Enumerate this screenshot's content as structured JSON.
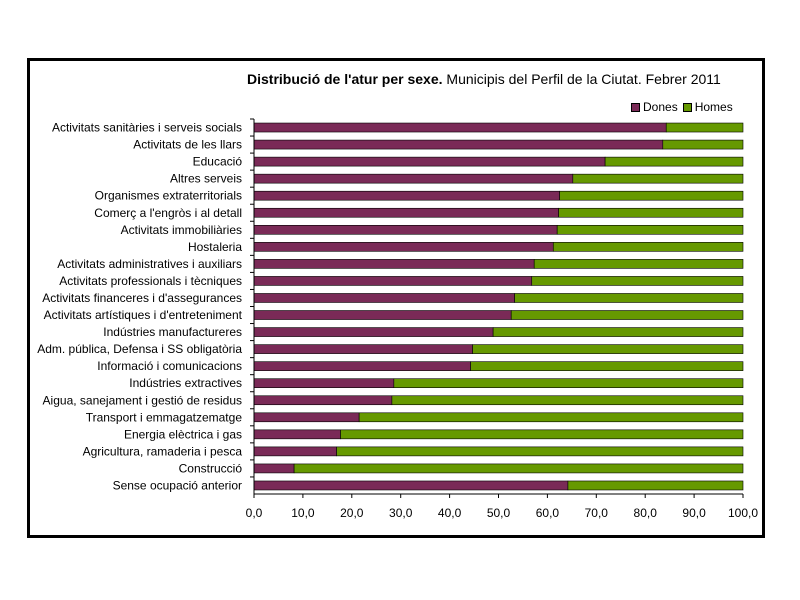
{
  "chart_data": {
    "type": "bar",
    "orientation": "horizontal",
    "stacked": true,
    "title_bold": "Distribució de l'atur per sexe.",
    "title_rest": " Municipis del Perfil de la Ciutat. Febrer 2011",
    "categories": [
      "Activitats sanitàries i serveis socials",
      "Activitats de les llars",
      "Educació",
      "Altres serveis",
      "Organismes extraterritorials",
      "Comerç a l'engròs i al detall",
      "Activitats immobiliàries",
      "Hostaleria",
      "Activitats administratives i auxiliars",
      "Activitats professionals i tècniques",
      "Activitats financeres i d'assegurances",
      "Activitats artístiques i d'entreteniment",
      "Indústries manufactureres",
      "Adm. pública, Defensa i SS obligatòria",
      "Informació i comunicacions",
      "Indústries extractives",
      "Aigua, sanejament i gestió de residus",
      "Transport i emmagatzematge",
      "Energia elèctrica i gas",
      "Agricultura, ramaderia i pesca",
      "Construcció",
      "Sense ocupació anterior"
    ],
    "series": [
      {
        "name": "Dones",
        "color": "#7a2a57",
        "values": [
          84.3,
          83.6,
          71.8,
          65.2,
          62.5,
          62.3,
          62.0,
          61.2,
          57.3,
          56.8,
          53.3,
          52.6,
          48.9,
          44.7,
          44.3,
          28.6,
          28.2,
          21.5,
          17.7,
          16.9,
          8.2,
          64.2
        ]
      },
      {
        "name": "Homes",
        "color": "#669900",
        "values": [
          15.7,
          16.4,
          28.2,
          34.8,
          37.5,
          37.7,
          38.0,
          38.8,
          42.7,
          43.2,
          46.7,
          47.4,
          51.1,
          55.3,
          55.7,
          71.4,
          71.8,
          78.5,
          82.3,
          83.1,
          91.8,
          35.8
        ]
      }
    ],
    "xlim": [
      0,
      100
    ],
    "xticks": [
      "0,0",
      "10,0",
      "20,0",
      "30,0",
      "40,0",
      "50,0",
      "60,0",
      "70,0",
      "80,0",
      "90,0",
      "100,0"
    ],
    "legend_position": "top-right",
    "grid": false
  }
}
